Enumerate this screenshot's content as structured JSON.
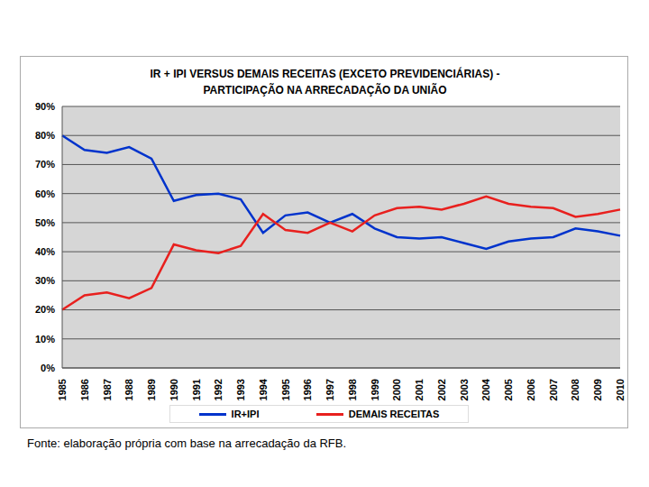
{
  "chart_data": {
    "type": "line",
    "title": [
      "IR + IPI VERSUS DEMAIS RECEITAS (EXCETO PREVIDENCIÁRIAS) -",
      "PARTICIPAÇÃO NA ARRECADAÇÃO DA UNIÃO"
    ],
    "source": "Fonte: elaboração própria com base na arrecadação da RFB.",
    "categories": [
      "1985",
      "1986",
      "1987",
      "1988",
      "1989",
      "1990",
      "1991",
      "1992",
      "1993",
      "1994",
      "1995",
      "1996",
      "1997",
      "1998",
      "1999",
      "2000",
      "2001",
      "2002",
      "2003",
      "2004",
      "2005",
      "2006",
      "2007",
      "2008",
      "2009",
      "2010"
    ],
    "series": [
      {
        "name": "IR+IPI",
        "color": "#0033cc",
        "values": [
          80,
          75,
          74,
          76,
          72,
          57.5,
          59.5,
          60,
          58,
          46.5,
          52.5,
          53.5,
          50,
          53,
          48,
          45,
          44.5,
          45,
          43,
          41,
          43.5,
          44.5,
          45,
          48,
          47,
          45.5
        ]
      },
      {
        "name": "DEMAIS RECEITAS",
        "color": "#e8201e",
        "values": [
          20,
          25,
          26,
          24,
          27.5,
          42.5,
          40.5,
          39.5,
          42,
          53,
          47.5,
          46.5,
          50,
          47,
          52.5,
          55,
          55.5,
          54.5,
          56.5,
          59,
          56.5,
          55.5,
          55,
          52,
          53,
          54.5
        ]
      }
    ],
    "ylim": [
      0,
      90
    ],
    "yticks": [
      {
        "value": 0,
        "label": "0%"
      },
      {
        "value": 10,
        "label": "10%"
      },
      {
        "value": 20,
        "label": "20%"
      },
      {
        "value": 30,
        "label": "30%"
      },
      {
        "value": 40,
        "label": "40%"
      },
      {
        "value": 50,
        "label": "50%"
      },
      {
        "value": 60,
        "label": "60%"
      },
      {
        "value": 70,
        "label": "70%"
      },
      {
        "value": 80,
        "label": "80%"
      },
      {
        "value": 90,
        "label": "90%"
      }
    ],
    "grid": true,
    "legend": "bottom"
  }
}
